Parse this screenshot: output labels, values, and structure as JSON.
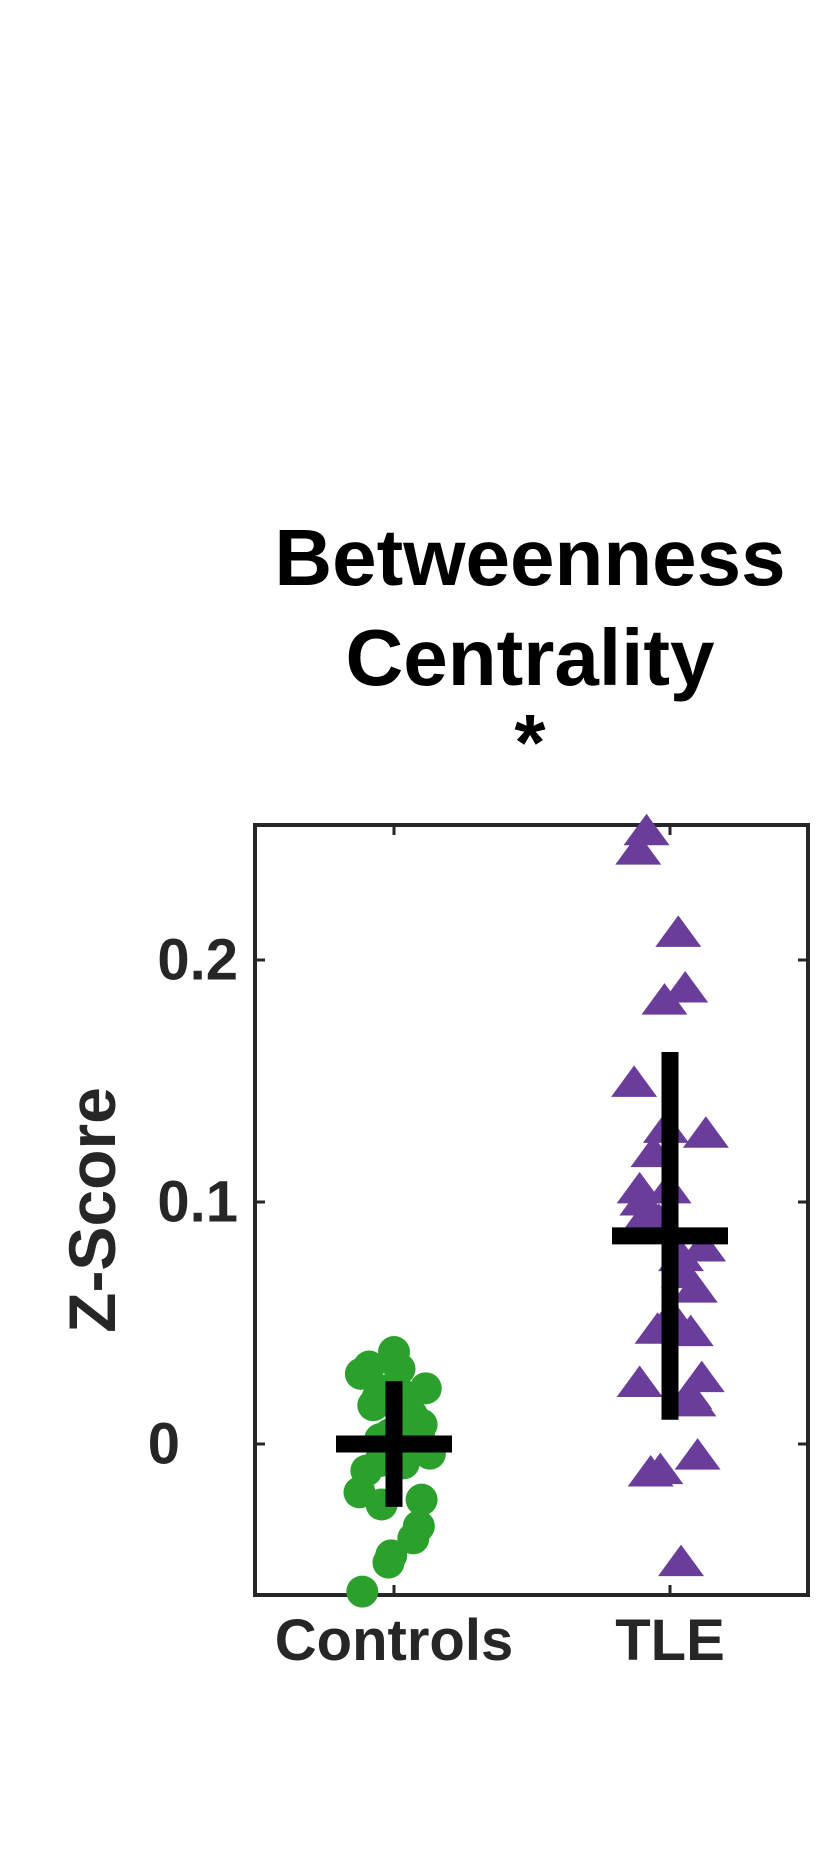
{
  "chart_data": {
    "type": "scatter",
    "title_lines": [
      "Betweenness",
      "Centrality",
      "*"
    ],
    "ylabel": "Z-Score",
    "xlabel": "",
    "categories": [
      "Controls",
      "TLE"
    ],
    "ylim": [
      -0.062,
      0.256
    ],
    "yticks": [
      0,
      0.1,
      0.2
    ],
    "ytick_labels": [
      "0",
      "0.1",
      "0.2"
    ],
    "grid": false,
    "series": [
      {
        "name": "Controls",
        "marker": "circle",
        "color": "#2ca02c",
        "points": [
          {
            "jitter": -0.24,
            "y": 0.029
          },
          {
            "jitter": -0.18,
            "y": 0.032
          },
          {
            "jitter": -0.12,
            "y": 0.019
          },
          {
            "jitter": -0.15,
            "y": 0.016
          },
          {
            "jitter": -0.08,
            "y": 0.022
          },
          {
            "jitter": 0.0,
            "y": 0.038
          },
          {
            "jitter": 0.04,
            "y": 0.031
          },
          {
            "jitter": 0.07,
            "y": 0.02
          },
          {
            "jitter": 0.13,
            "y": 0.012
          },
          {
            "jitter": 0.23,
            "y": 0.023
          },
          {
            "jitter": 0.09,
            "y": 0.008
          },
          {
            "jitter": 0.18,
            "y": 0.004
          },
          {
            "jitter": 0.2,
            "y": 0.008
          },
          {
            "jitter": -0.03,
            "y": 0.004
          },
          {
            "jitter": -0.1,
            "y": 0.002
          },
          {
            "jitter": 0.26,
            "y": -0.004
          },
          {
            "jitter": 0.14,
            "y": -0.003
          },
          {
            "jitter": -0.1,
            "y": -0.007
          },
          {
            "jitter": 0.07,
            "y": -0.008
          },
          {
            "jitter": -0.2,
            "y": -0.011
          },
          {
            "jitter": -0.25,
            "y": -0.02
          },
          {
            "jitter": -0.09,
            "y": -0.025
          },
          {
            "jitter": 0.2,
            "y": -0.023
          },
          {
            "jitter": 0.18,
            "y": -0.034
          },
          {
            "jitter": 0.14,
            "y": -0.039
          },
          {
            "jitter": -0.02,
            "y": -0.046
          },
          {
            "jitter": -0.04,
            "y": -0.049
          },
          {
            "jitter": -0.23,
            "y": -0.061
          }
        ],
        "mean": 0.0,
        "errorbar": [
          -0.026,
          0.026
        ]
      },
      {
        "name": "TLE",
        "marker": "triangle",
        "color": "#6a3d9a",
        "points": [
          {
            "jitter": -0.17,
            "y": 0.253
          },
          {
            "jitter": -0.23,
            "y": 0.245
          },
          {
            "jitter": 0.06,
            "y": 0.211
          },
          {
            "jitter": 0.11,
            "y": 0.188
          },
          {
            "jitter": -0.04,
            "y": 0.183
          },
          {
            "jitter": -0.26,
            "y": 0.149
          },
          {
            "jitter": 0.26,
            "y": 0.128
          },
          {
            "jitter": -0.03,
            "y": 0.13
          },
          {
            "jitter": -0.12,
            "y": 0.12
          },
          {
            "jitter": -0.22,
            "y": 0.105
          },
          {
            "jitter": -0.2,
            "y": 0.1
          },
          {
            "jitter": -0.16,
            "y": 0.095
          },
          {
            "jitter": -0.08,
            "y": 0.092
          },
          {
            "jitter": -0.01,
            "y": 0.105
          },
          {
            "jitter": 0.24,
            "y": 0.081
          },
          {
            "jitter": 0.08,
            "y": 0.077
          },
          {
            "jitter": 0.1,
            "y": 0.07
          },
          {
            "jitter": 0.18,
            "y": 0.064
          },
          {
            "jitter": -0.09,
            "y": 0.047
          },
          {
            "jitter": -0.03,
            "y": 0.048
          },
          {
            "jitter": 0.01,
            "y": 0.053
          },
          {
            "jitter": 0.15,
            "y": 0.046
          },
          {
            "jitter": -0.22,
            "y": 0.025
          },
          {
            "jitter": 0.23,
            "y": 0.027
          },
          {
            "jitter": 0.14,
            "y": 0.02
          },
          {
            "jitter": 0.17,
            "y": 0.017
          },
          {
            "jitter": 0.2,
            "y": -0.005
          },
          {
            "jitter": -0.14,
            "y": -0.012
          },
          {
            "jitter": -0.07,
            "y": -0.011
          },
          {
            "jitter": 0.08,
            "y": -0.049
          }
        ],
        "mean": 0.086,
        "errorbar": [
          0.01,
          0.162
        ]
      }
    ]
  }
}
